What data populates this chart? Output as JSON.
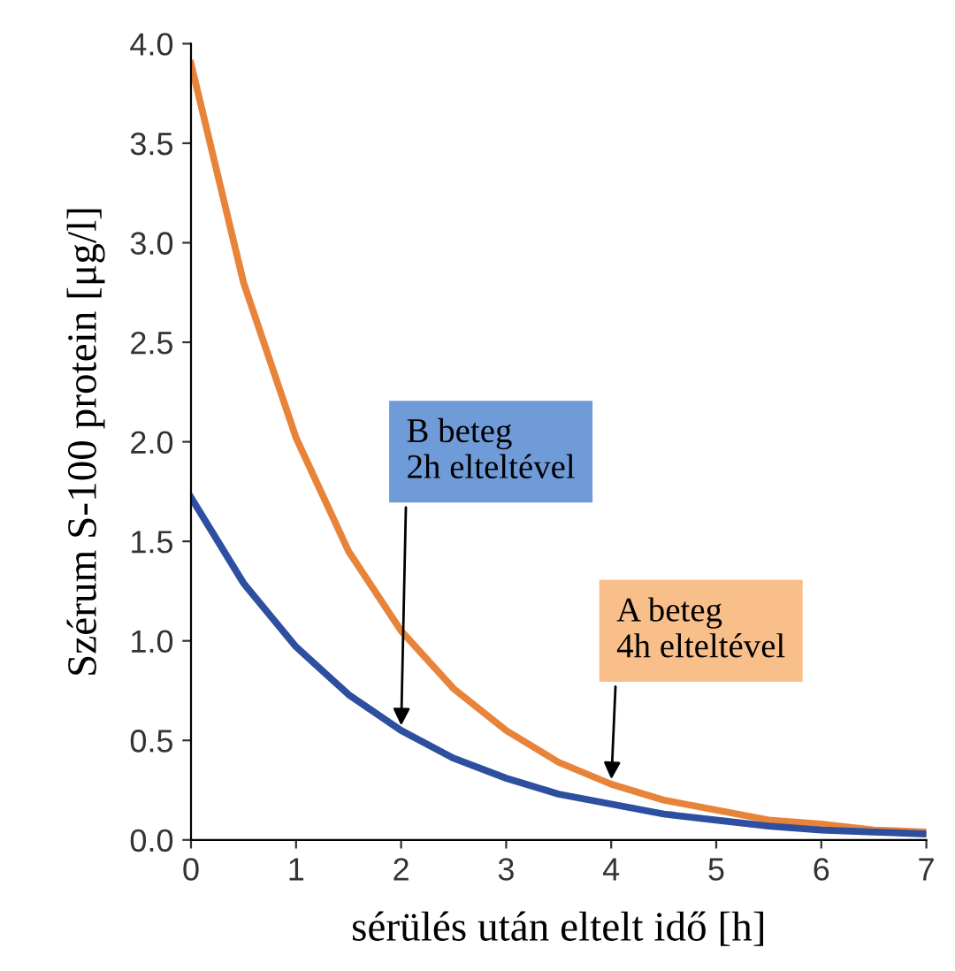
{
  "chart_data": {
    "type": "line",
    "xlabel": "sérülés után eltelt idő [h]",
    "ylabel": "Szérum S-100 protein [μg/l]",
    "x": [
      0,
      0.5,
      1,
      1.5,
      2,
      2.5,
      3,
      3.5,
      4,
      4.5,
      5,
      5.5,
      6,
      6.5,
      7
    ],
    "series": [
      {
        "color": "#e8833a",
        "values": [
          3.9,
          2.8,
          2.02,
          1.45,
          1.05,
          0.76,
          0.55,
          0.39,
          0.28,
          0.2,
          0.15,
          0.1,
          0.08,
          0.05,
          0.04
        ]
      },
      {
        "color": "#2e4fa0",
        "values": [
          1.72,
          1.29,
          0.97,
          0.73,
          0.55,
          0.41,
          0.31,
          0.23,
          0.18,
          0.13,
          0.1,
          0.07,
          0.05,
          0.04,
          0.03
        ]
      }
    ],
    "annotations": [
      {
        "text": "B beteg\n2h elteltével",
        "x": 2,
        "y": 0.55
      },
      {
        "text": "A beteg\n4h elteltével",
        "x": 4,
        "y": 0.28
      }
    ],
    "xlim": [
      0,
      7
    ],
    "ylim": [
      0,
      4.0
    ],
    "xticks": [
      0,
      1,
      2,
      3,
      4,
      5,
      6,
      7
    ],
    "yticks": [
      {
        "value": 0,
        "label": "0.0"
      },
      {
        "value": 0.5,
        "label": "0.5"
      },
      {
        "value": 1,
        "label": "1.0"
      },
      {
        "value": 1.5,
        "label": "1.5"
      },
      {
        "value": 2,
        "label": "2.0"
      },
      {
        "value": 2.5,
        "label": "2.5"
      },
      {
        "value": 3,
        "label": "3.0"
      },
      {
        "value": 3.5,
        "label": "3.5"
      },
      {
        "value": 4,
        "label": "4.0"
      }
    ],
    "grid": false,
    "legend": false,
    "marker": "none",
    "line_style": "solid"
  }
}
